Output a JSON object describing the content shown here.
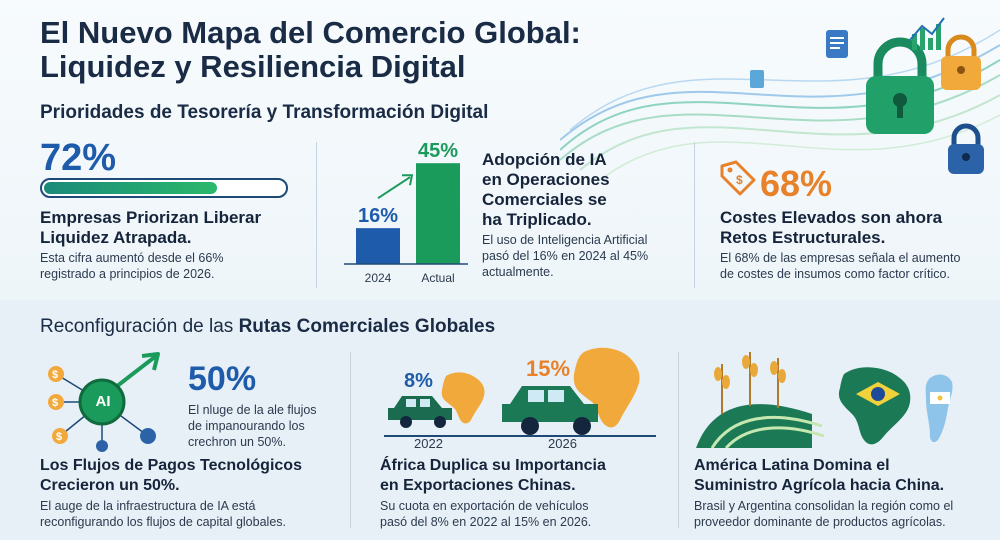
{
  "header": {
    "title_line1": "El Nuevo Mapa del Comercio Global:",
    "title_line2": "Liquidez y Resiliencia Digital",
    "subtitle": "Prioridades de Tesorería y Transformación Digital"
  },
  "colors": {
    "navy": "#1a2b45",
    "blue": "#1e5bab",
    "green": "#1a9a5b",
    "orange": "#e8822a"
  },
  "card_liquidity": {
    "value": "72%",
    "progress_fraction": 0.72,
    "heading_line1": "Empresas Priorizan Liberar",
    "heading_line2": "Liquidez Atrapada.",
    "text_line1": "Esta cifra aumentó desde el 66%",
    "text_line2": "registrado a principios de 2026."
  },
  "chart_data": {
    "type": "bar",
    "categories": [
      "2024",
      "Actual"
    ],
    "values": [
      16,
      45
    ],
    "value_labels": [
      "16%",
      "45%"
    ],
    "ylim": [
      0,
      50
    ],
    "colors": [
      "#1e5bab",
      "#1a9a5b"
    ]
  },
  "card_ai": {
    "heading_line1": "Adopción de IA",
    "heading_line2": "en Operaciones",
    "heading_line3": "Comerciales se",
    "heading_line4": "ha Triplicado.",
    "text_line1": "El uso de Inteligencia Artificial",
    "text_line2": "pasó del 16% en 2024 al 45%",
    "text_line3": "actualmente."
  },
  "card_costs": {
    "value": "68%",
    "heading_line1": "Costes Elevados son ahora",
    "heading_line2": "Retos Estructurales.",
    "text_line1": "El 68% de las empresas señala el aumento",
    "text_line2": "de costes de insumos como factor crítico."
  },
  "section2": {
    "title_prefix": "Reconfiguración de las ",
    "title_bold": "Rutas Comerciales Globales"
  },
  "card_payments": {
    "icon_label": "AI",
    "value": "50%",
    "caption_line1": "El nluge de la ale flujos",
    "caption_line2": "de impanourando los",
    "caption_line3": "crechron un 50%.",
    "heading_line1": "Los Flujos de Pagos Tecnológicos",
    "heading_line2": "Crecieron un 50%.",
    "text_line1": "El auge de la infraestructura de IA está",
    "text_line2": "reconfigurando los flujos de capital globales."
  },
  "card_africa": {
    "value_2022": "8%",
    "value_2026": "15%",
    "year_2022": "2022",
    "year_2026": "2026",
    "heading_line1": "África Duplica su Importancia",
    "heading_line2": "en Exportaciones Chinas.",
    "text_line1": "Su cuota en exportación de vehículos",
    "text_line2": "pasó del 8% en 2022 al 15% en 2026."
  },
  "card_latam": {
    "heading_line1": "América Latina Domina el",
    "heading_line2": "Suministro Agrícola hacia China.",
    "text_line1": "Brasil y Argentina consolidan la región como el",
    "text_line2": "proveedor dominante de productos agrícolas."
  }
}
